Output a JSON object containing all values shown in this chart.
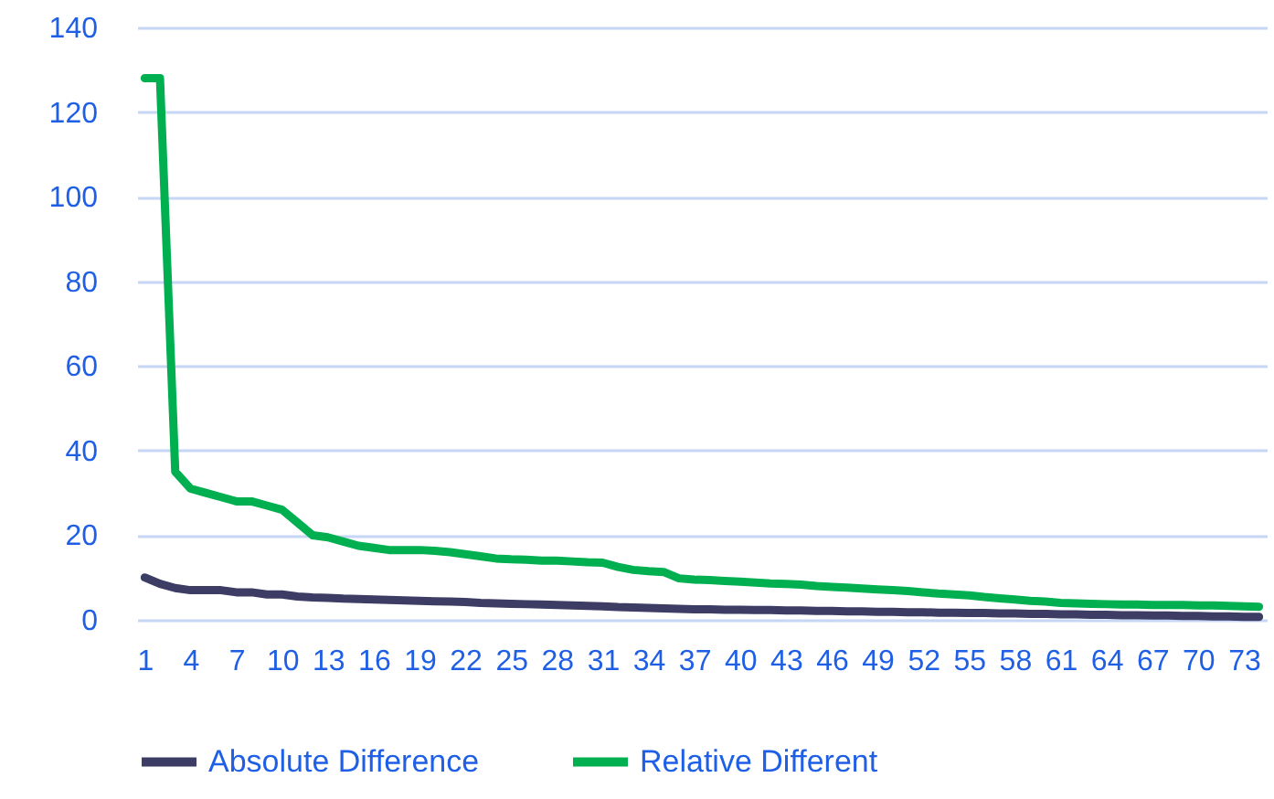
{
  "chart_data": {
    "type": "line",
    "categories": [
      "1",
      null,
      null,
      "4",
      null,
      null,
      "7",
      null,
      null,
      "10",
      null,
      null,
      "13",
      null,
      null,
      "16",
      null,
      null,
      "19",
      null,
      null,
      "22",
      null,
      null,
      "25",
      null,
      null,
      "28",
      null,
      null,
      "31",
      null,
      null,
      "34",
      null,
      null,
      "37",
      null,
      null,
      "40",
      null,
      null,
      "43",
      null,
      null,
      "46",
      null,
      null,
      "49",
      null,
      null,
      "52",
      null,
      null,
      "55",
      null,
      null,
      "58",
      null,
      null,
      "61",
      null,
      null,
      "64",
      null,
      null,
      "67",
      null,
      null,
      "70",
      null,
      null,
      "73",
      null
    ],
    "series": [
      {
        "name": "Absolute Difference",
        "color": "#3c3c64",
        "values": [
          10,
          8.5,
          7.5,
          7,
          7,
          7,
          6.5,
          6.5,
          6,
          6,
          5.5,
          5.3,
          5.2,
          5,
          4.9,
          4.8,
          4.7,
          4.6,
          4.5,
          4.4,
          4.3,
          4.2,
          4,
          3.9,
          3.8,
          3.7,
          3.6,
          3.5,
          3.4,
          3.3,
          3.2,
          3,
          2.9,
          2.8,
          2.7,
          2.6,
          2.5,
          2.5,
          2.4,
          2.4,
          2.3,
          2.3,
          2.2,
          2.2,
          2.1,
          2.1,
          2,
          2,
          1.9,
          1.9,
          1.8,
          1.8,
          1.7,
          1.7,
          1.6,
          1.6,
          1.5,
          1.5,
          1.4,
          1.4,
          1.3,
          1.3,
          1.2,
          1.2,
          1.1,
          1.1,
          1,
          1,
          0.9,
          0.9,
          0.8,
          0.8,
          0.7,
          0.7
        ]
      },
      {
        "name": "Relative Different",
        "color": "#00b050",
        "values": [
          128,
          128,
          35,
          31,
          30,
          29,
          28,
          28,
          27,
          26,
          23,
          20,
          19.5,
          18.5,
          17.5,
          17,
          16.5,
          16.5,
          16.5,
          16.3,
          16,
          15.5,
          15,
          14.5,
          14.3,
          14.2,
          14,
          14,
          13.8,
          13.6,
          13.5,
          12.5,
          11.8,
          11.5,
          11.3,
          9.8,
          9.5,
          9.4,
          9.2,
          9,
          8.8,
          8.6,
          8.5,
          8.3,
          8,
          7.8,
          7.6,
          7.4,
          7.2,
          7,
          6.8,
          6.5,
          6.2,
          6,
          5.8,
          5.4,
          5.1,
          4.8,
          4.5,
          4.3,
          4,
          3.9,
          3.8,
          3.7,
          3.6,
          3.6,
          3.5,
          3.5,
          3.5,
          3.4,
          3.4,
          3.3,
          3.2,
          3.1
        ]
      }
    ],
    "ylim": [
      0,
      140
    ],
    "yticks": [
      0,
      20,
      40,
      60,
      80,
      100,
      120,
      140
    ],
    "grid": "y",
    "legend": "bottom",
    "marker": "none",
    "line_style": "solid"
  }
}
